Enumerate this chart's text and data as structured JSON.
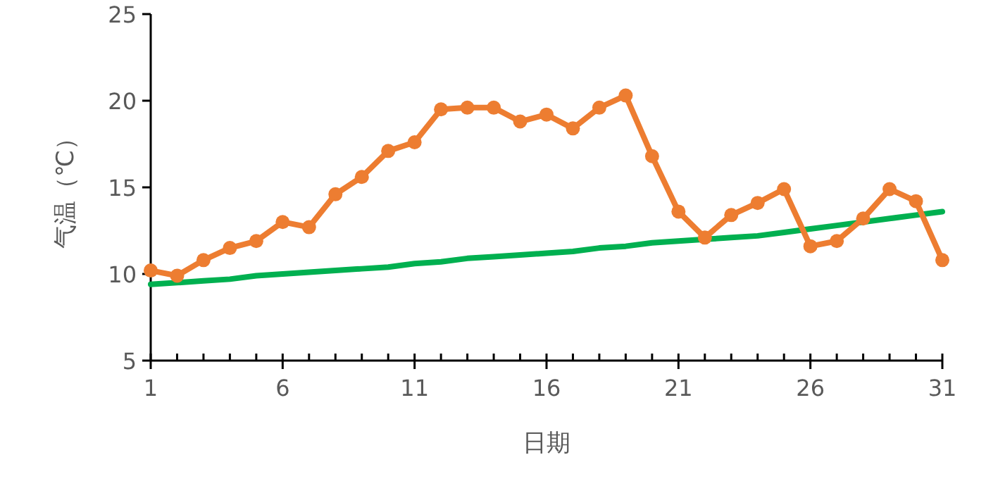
{
  "chart_data": {
    "type": "line",
    "xlabel": "日期",
    "ylabel": "气温（℃）",
    "x": [
      1,
      2,
      3,
      4,
      5,
      6,
      7,
      8,
      9,
      10,
      11,
      12,
      13,
      14,
      15,
      16,
      17,
      18,
      19,
      20,
      21,
      22,
      23,
      24,
      25,
      26,
      27,
      28,
      29,
      30,
      31
    ],
    "xlim": [
      1,
      31
    ],
    "xticks": [
      1,
      {
        "value": 2,
        "label": null
      },
      {
        "value": 3,
        "label": null
      },
      {
        "value": 4,
        "label": null
      },
      {
        "value": 5,
        "label": null
      },
      6,
      {
        "value": 7,
        "label": null
      },
      {
        "value": 8,
        "label": null
      },
      {
        "value": 9,
        "label": null
      },
      {
        "value": 10,
        "label": null
      },
      11,
      {
        "value": 12,
        "label": null
      },
      {
        "value": 13,
        "label": null
      },
      {
        "value": 14,
        "label": null
      },
      {
        "value": 15,
        "label": null
      },
      16,
      {
        "value": 17,
        "label": null
      },
      {
        "value": 18,
        "label": null
      },
      {
        "value": 19,
        "label": null
      },
      {
        "value": 20,
        "label": null
      },
      21,
      {
        "value": 22,
        "label": null
      },
      {
        "value": 23,
        "label": null
      },
      {
        "value": 24,
        "label": null
      },
      {
        "value": 25,
        "label": null
      },
      26,
      {
        "value": 27,
        "label": null
      },
      {
        "value": 28,
        "label": null
      },
      {
        "value": 29,
        "label": null
      },
      {
        "value": 30,
        "label": null
      },
      31
    ],
    "ylim": [
      5,
      25
    ],
    "yticks": [
      5,
      10,
      15,
      20,
      25
    ],
    "series": [
      {
        "color": "#ed7d31",
        "marker": "circle",
        "values": [
          10.2,
          9.9,
          10.8,
          11.5,
          11.9,
          13.0,
          12.7,
          14.6,
          15.6,
          17.1,
          17.6,
          19.5,
          19.6,
          19.6,
          18.8,
          19.2,
          18.4,
          19.6,
          20.3,
          16.8,
          13.6,
          12.1,
          13.4,
          14.1,
          14.9,
          11.6,
          11.9,
          13.2,
          14.9,
          14.2,
          10.8
        ]
      },
      {
        "color": "#00b050",
        "marker": "none",
        "values": [
          9.4,
          9.5,
          9.6,
          9.7,
          9.9,
          10.0,
          10.1,
          10.2,
          10.3,
          10.4,
          10.6,
          10.7,
          10.9,
          11.0,
          11.1,
          11.2,
          11.3,
          11.5,
          11.6,
          11.8,
          11.9,
          12.0,
          12.1,
          12.2,
          12.4,
          12.6,
          12.8,
          13.0,
          13.2,
          13.4,
          13.6
        ]
      }
    ]
  }
}
